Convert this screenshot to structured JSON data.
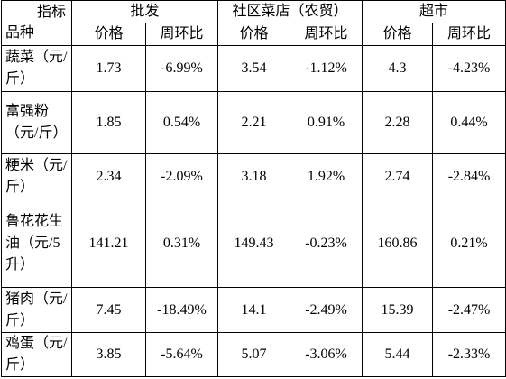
{
  "header": {
    "indicator": "指标",
    "variety": "品种",
    "groups": [
      "批发",
      "社区菜店（农贸）",
      "超市"
    ],
    "subheaders": [
      "价格",
      "周环比",
      "价格",
      "周环比",
      "价格",
      "周环比"
    ]
  },
  "rows": [
    {
      "name": "蔬菜（元/斤）",
      "cells": [
        "1.73",
        "-6.99%",
        "3.54",
        "-1.12%",
        "4.3",
        "-4.23%"
      ]
    },
    {
      "name": "富强粉（元/斤）",
      "cells": [
        "1.85",
        "0.54%",
        "2.21",
        "0.91%",
        "2.28",
        "0.44%"
      ]
    },
    {
      "name": "粳米（元/斤）",
      "cells": [
        "2.34",
        "-2.09%",
        "3.18",
        "1.92%",
        "2.74",
        "-2.84%"
      ]
    },
    {
      "name": "鲁花花生油（元/5升）",
      "cells": [
        "141.21",
        "0.31%",
        "149.43",
        "-0.23%",
        "160.86",
        "0.21%"
      ]
    },
    {
      "name": "猪肉（元/斤）",
      "cells": [
        "7.45",
        "-18.49%",
        "14.1",
        "-2.49%",
        "15.39",
        "-2.47%"
      ]
    },
    {
      "name": "鸡蛋（元/斤）",
      "cells": [
        "3.85",
        "-5.64%",
        "5.07",
        "-3.06%",
        "5.44",
        "-2.33%"
      ]
    }
  ]
}
